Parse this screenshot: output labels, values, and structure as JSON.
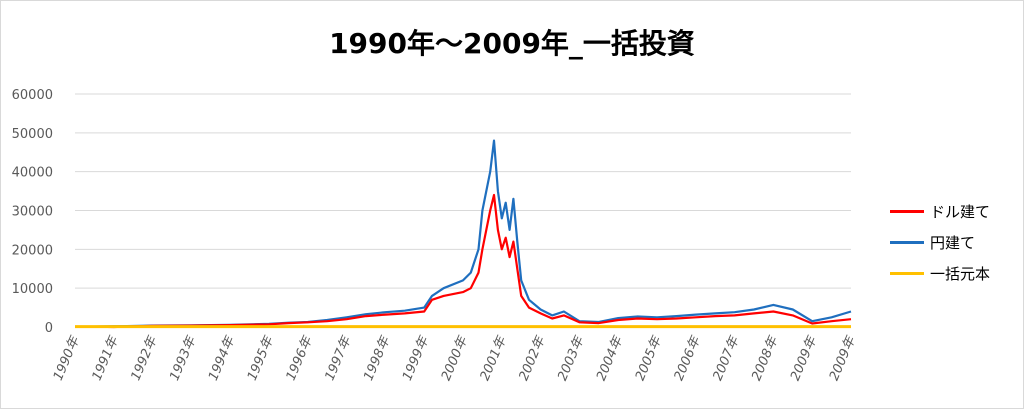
{
  "chart_data": {
    "type": "line",
    "title": "1990年～2009年_一括投資",
    "xlabel": "",
    "ylabel": "",
    "x_tick_labels": [
      "1990年",
      "1991年",
      "1992年",
      "1993年",
      "1994年",
      "1995年",
      "1996年",
      "1997年",
      "1998年",
      "1999年",
      "2000年",
      "2001年",
      "2002年",
      "2003年",
      "2004年",
      "2005年",
      "2006年",
      "2007年",
      "2008年",
      "2009年",
      "2009年"
    ],
    "y_ticks": [
      0,
      10000,
      20000,
      30000,
      40000,
      50000,
      60000
    ],
    "ylim": [
      0,
      60000
    ],
    "grid": true,
    "legend_position": "right",
    "series": [
      {
        "name": "ドル建て",
        "color": "#ff0000",
        "points": [
          [
            0,
            100
          ],
          [
            0.5,
            80
          ],
          [
            1,
            0
          ],
          [
            1.5,
            150
          ],
          [
            2,
            300
          ],
          [
            3,
            350
          ],
          [
            4,
            500
          ],
          [
            5,
            700
          ],
          [
            5.5,
            1000
          ],
          [
            6,
            1200
          ],
          [
            6.5,
            1500
          ],
          [
            7,
            2000
          ],
          [
            7.5,
            2800
          ],
          [
            8,
            3200
          ],
          [
            8.5,
            3500
          ],
          [
            9,
            4000
          ],
          [
            9.2,
            7000
          ],
          [
            9.5,
            8000
          ],
          [
            10,
            9000
          ],
          [
            10.2,
            10000
          ],
          [
            10.4,
            14000
          ],
          [
            10.5,
            20000
          ],
          [
            10.7,
            30000
          ],
          [
            10.8,
            34000
          ],
          [
            10.9,
            25000
          ],
          [
            11,
            20000
          ],
          [
            11.1,
            23000
          ],
          [
            11.2,
            18000
          ],
          [
            11.3,
            22000
          ],
          [
            11.4,
            15000
          ],
          [
            11.5,
            8000
          ],
          [
            11.7,
            5000
          ],
          [
            12,
            3500
          ],
          [
            12.3,
            2200
          ],
          [
            12.6,
            3000
          ],
          [
            13,
            1200
          ],
          [
            13.5,
            1000
          ],
          [
            14,
            1800
          ],
          [
            14.5,
            2200
          ],
          [
            15,
            2000
          ],
          [
            15.5,
            2200
          ],
          [
            16,
            2500
          ],
          [
            16.5,
            2800
          ],
          [
            17,
            3000
          ],
          [
            17.5,
            3500
          ],
          [
            18,
            4000
          ],
          [
            18.5,
            3000
          ],
          [
            19,
            900
          ],
          [
            19.5,
            1500
          ],
          [
            20,
            2000
          ]
        ]
      },
      {
        "name": "円建て",
        "color": "#1f6fbf",
        "points": [
          [
            0,
            100
          ],
          [
            0.5,
            100
          ],
          [
            1,
            200
          ],
          [
            1.5,
            250
          ],
          [
            2,
            350
          ],
          [
            3,
            400
          ],
          [
            4,
            550
          ],
          [
            5,
            800
          ],
          [
            5.5,
            1100
          ],
          [
            6,
            1300
          ],
          [
            6.5,
            1800
          ],
          [
            7,
            2500
          ],
          [
            7.5,
            3300
          ],
          [
            8,
            3800
          ],
          [
            8.5,
            4200
          ],
          [
            9,
            5000
          ],
          [
            9.2,
            8000
          ],
          [
            9.5,
            10000
          ],
          [
            10,
            12000
          ],
          [
            10.2,
            14000
          ],
          [
            10.4,
            20000
          ],
          [
            10.5,
            30000
          ],
          [
            10.7,
            40000
          ],
          [
            10.8,
            48000
          ],
          [
            10.9,
            35000
          ],
          [
            11,
            28000
          ],
          [
            11.1,
            32000
          ],
          [
            11.2,
            25000
          ],
          [
            11.3,
            33000
          ],
          [
            11.4,
            22000
          ],
          [
            11.5,
            12000
          ],
          [
            11.7,
            7000
          ],
          [
            12,
            4500
          ],
          [
            12.3,
            3000
          ],
          [
            12.6,
            4000
          ],
          [
            13,
            1500
          ],
          [
            13.5,
            1300
          ],
          [
            14,
            2300
          ],
          [
            14.5,
            2700
          ],
          [
            15,
            2500
          ],
          [
            15.5,
            2800
          ],
          [
            16,
            3200
          ],
          [
            16.5,
            3500
          ],
          [
            17,
            3800
          ],
          [
            17.5,
            4500
          ],
          [
            18,
            5700
          ],
          [
            18.5,
            4500
          ],
          [
            19,
            1500
          ],
          [
            19.5,
            2500
          ],
          [
            20,
            4000
          ]
        ]
      },
      {
        "name": "一括元本",
        "color": "#ffc000",
        "points": [
          [
            0,
            100
          ],
          [
            20,
            100
          ]
        ]
      }
    ]
  }
}
